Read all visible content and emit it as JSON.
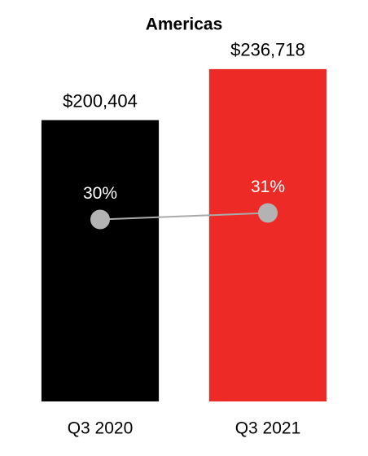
{
  "chart_data": {
    "type": "bar",
    "title": "Americas",
    "categories": [
      "Q3 2020",
      "Q3 2021"
    ],
    "series": [
      {
        "values": [
          200404,
          236718
        ],
        "value_labels": [
          "$200,404",
          "$236,718"
        ],
        "colors": [
          "#000000",
          "#ee2a27"
        ]
      },
      {
        "type": "line",
        "axis": "y2",
        "color": "#aaaaaa",
        "marker_color": "#b3b3b3",
        "values": [
          30,
          31
        ],
        "value_labels": [
          "30%",
          "31%"
        ]
      }
    ],
    "ylim": [
      0,
      250000
    ],
    "y2lim": [
      2,
      56
    ]
  }
}
